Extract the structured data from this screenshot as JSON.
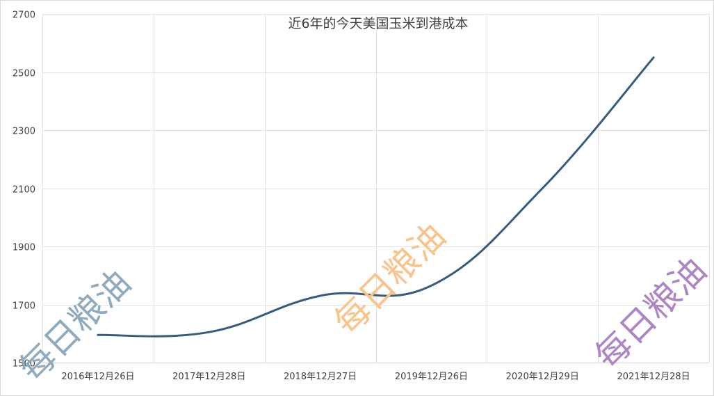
{
  "chart_data": {
    "type": "line",
    "title": "近6年的今天美国玉米到港成本",
    "xlabel": "",
    "ylabel": "",
    "categories": [
      "2016年12月26日",
      "2017年12月28日",
      "2018年12月27日",
      "2019年12月26日",
      "2020年12月29日",
      "2021年12月28日"
    ],
    "series": [
      {
        "values": [
          1595,
          1605,
          1730,
          1765,
          2100,
          2550
        ],
        "color": "#375a7f"
      }
    ],
    "yticks": [
      "1500",
      "1700",
      "1900",
      "2100",
      "2300",
      "2500",
      "2700"
    ],
    "ylim": [
      1500,
      2700
    ],
    "smooth": true,
    "grid": true,
    "legend": "none"
  },
  "watermarks": [
    {
      "text": "每日粮油",
      "color": "#8fa9bd"
    },
    {
      "text": "每日粮油",
      "color": "#f9c48c"
    },
    {
      "text": "每日粮油",
      "color": "#ad85c4"
    }
  ]
}
